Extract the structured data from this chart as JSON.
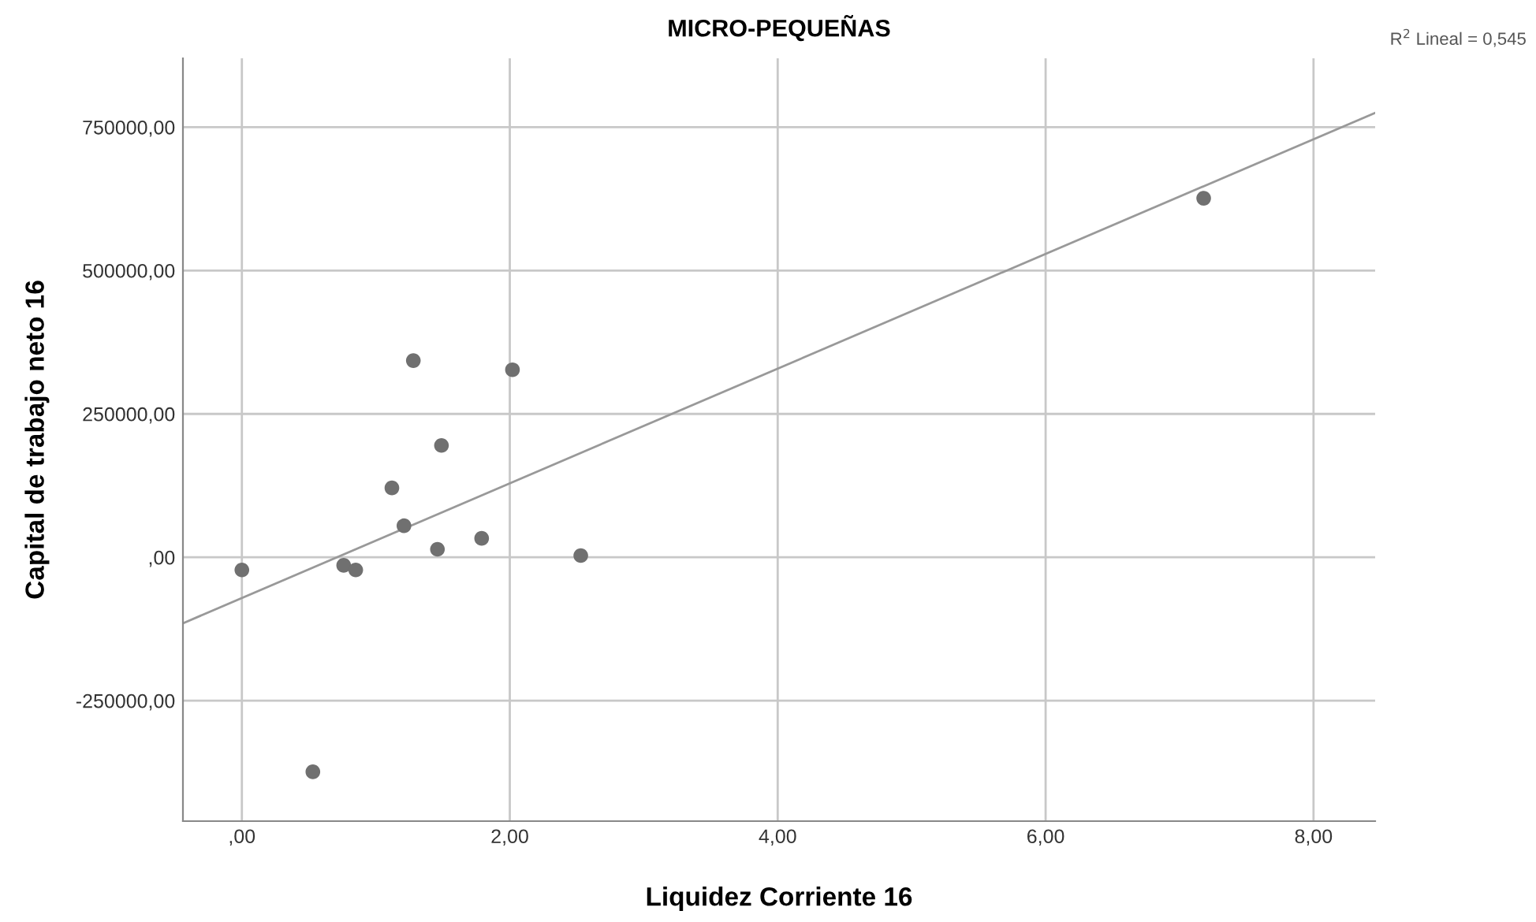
{
  "chart_data": {
    "type": "scatter",
    "title": "MICRO-PEQUEÑAS",
    "xlabel": "Liquidez Corriente 16",
    "ylabel": "Capital de trabajo neto 16",
    "annotations": [
      "R$^{2}$ Lineal = 0,545"
    ],
    "series": [
      {
        "color": "#707070",
        "marker": "circle",
        "x": [
          0.0,
          0.76,
          0.85,
          1.12,
          1.21,
          1.28,
          1.46,
          1.49,
          1.79,
          2.02,
          2.53,
          0.53,
          7.18
        ],
        "values": [
          -22000,
          -14000,
          -22000,
          121000,
          55000,
          343000,
          14000,
          195000,
          33000,
          327000,
          3000,
          -374000,
          626000
        ]
      },
      {
        "type": "line",
        "color": "#999999",
        "marker": "none",
        "x": [
          -0.44,
          8.46
        ],
        "values": [
          -115000,
          775000
        ]
      }
    ],
    "xlim": [
      -0.44,
      8.46
    ],
    "ylim": [
      -460000,
      870000
    ],
    "xticks": [
      {
        "value": 0,
        "label": ",00"
      },
      {
        "value": 2,
        "label": "2,00"
      },
      {
        "value": 4,
        "label": "4,00"
      },
      {
        "value": 6,
        "label": "6,00"
      },
      {
        "value": 8,
        "label": "8,00"
      }
    ],
    "yticks": [
      {
        "value": -250000,
        "label": "-250000,00"
      },
      {
        "value": 0,
        "label": ",00"
      },
      {
        "value": 250000,
        "label": "250000,00"
      },
      {
        "value": 500000,
        "label": "500000,00"
      },
      {
        "value": 750000,
        "label": "750000,00"
      }
    ],
    "grid": true,
    "legend": false
  }
}
